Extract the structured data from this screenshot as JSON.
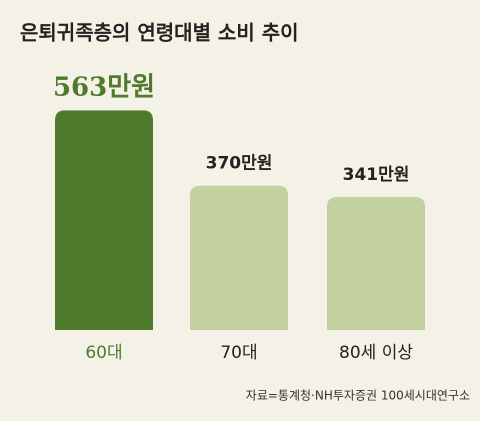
{
  "chart_data": {
    "type": "bar",
    "title": "은퇴귀족층의 연령대별 소비 추이",
    "categories": [
      "60대",
      "70대",
      "80세 이상"
    ],
    "values": [
      563,
      370,
      341
    ],
    "value_labels": [
      "563만원",
      "370만원",
      "341만원"
    ],
    "colors": [
      "#4f7a2c",
      "#c3d09f",
      "#c3d09f"
    ],
    "label_colors": [
      "#4f7a2c",
      "#222222",
      "#222222"
    ],
    "source": "자료=통계청·NH투자증권 100세시대연구소"
  }
}
